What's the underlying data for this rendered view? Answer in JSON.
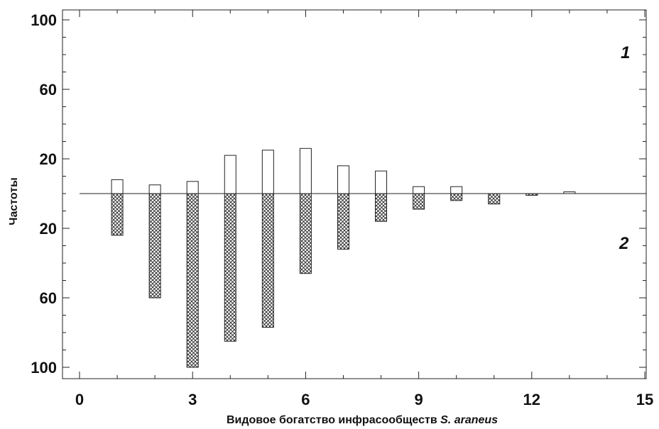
{
  "chart_data": {
    "type": "bar",
    "xlabel_prefix": "Видовое богатство инфрасообществ ",
    "xlabel_species": "S. araneus",
    "ylabel": "Частоты",
    "xlim": [
      0,
      15
    ],
    "x_ticks": [
      "0",
      "3",
      "6",
      "9",
      "12",
      "15"
    ],
    "ylim_upper": [
      0,
      100
    ],
    "ylim_lower": [
      0,
      100
    ],
    "y_ticks_upper": [
      "100",
      "60",
      "20"
    ],
    "y_ticks_lower": [
      "20",
      "60",
      "100"
    ],
    "x": [
      1,
      2,
      3,
      4,
      5,
      6,
      7,
      8,
      9,
      10,
      11,
      12,
      13
    ],
    "series": [
      {
        "name": "1",
        "position": "above",
        "fill": "#ffffff",
        "values": [
          8,
          5,
          7,
          22,
          25,
          26,
          16,
          13,
          4,
          4,
          0,
          0,
          1
        ]
      },
      {
        "name": "2",
        "position": "below",
        "fill": "crosshatch",
        "values": [
          24,
          60,
          100,
          85,
          77,
          46,
          32,
          16,
          9,
          4,
          6,
          1,
          0
        ]
      }
    ],
    "grid": false
  }
}
